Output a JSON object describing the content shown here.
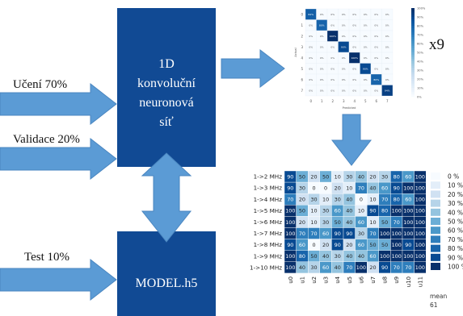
{
  "split": {
    "train_label": "Učení 70%",
    "val_label": "Validace 20%",
    "test_label": "Test 10%"
  },
  "network": {
    "line1": "1D",
    "line2": "konvoluční",
    "line3": "neuronová",
    "line4": "síť"
  },
  "model": {
    "label": "MODEL.h5"
  },
  "confusion": {
    "repeat_label": "x9",
    "classes": [
      "0",
      "1",
      "2",
      "3",
      "4",
      "5",
      "6",
      "7"
    ],
    "diagonal_pct": [
      82,
      80,
      100,
      90,
      100,
      90,
      80,
      94
    ],
    "colorbar_ticks": [
      "100%",
      "90%",
      "80%",
      "70%",
      "60%",
      "50%",
      "40%",
      "30%",
      "20%",
      "10%",
      "0%"
    ],
    "xlabel": "Predicted",
    "ylabel": "Actual"
  },
  "heatmap": {
    "rows": [
      "1->2 MHz",
      "1->3 MHz",
      "1->4 MHz",
      "1->5 MHz",
      "1->6 MHz",
      "1->7 MHz",
      "1->8 MHz",
      "1->9 MHz",
      "1->10 MHz"
    ],
    "cols": [
      "u0",
      "u1",
      "u2",
      "u3",
      "u4",
      "u5",
      "u6",
      "u7",
      "u8",
      "u9",
      "u10",
      "u11"
    ],
    "values": [
      [
        90,
        50,
        20,
        50,
        10,
        30,
        40,
        20,
        30,
        80,
        60,
        100
      ],
      [
        90,
        30,
        0,
        0,
        20,
        10,
        70,
        40,
        60,
        90,
        100,
        100
      ],
      [
        70,
        20,
        30,
        10,
        30,
        40,
        0,
        10,
        70,
        80,
        60,
        100
      ],
      [
        100,
        50,
        10,
        30,
        60,
        40,
        10,
        90,
        80,
        100,
        100,
        100
      ],
      [
        100,
        20,
        10,
        30,
        50,
        40,
        60,
        10,
        50,
        70,
        100,
        100
      ],
      [
        100,
        70,
        70,
        60,
        90,
        90,
        30,
        70,
        100,
        100,
        100,
        100
      ],
      [
        90,
        60,
        0,
        20,
        90,
        20,
        60,
        50,
        50,
        100,
        90,
        100
      ],
      [
        100,
        80,
        50,
        40,
        30,
        40,
        40,
        60,
        100,
        100,
        100,
        100
      ],
      [
        100,
        40,
        30,
        60,
        40,
        70,
        100,
        20,
        90,
        70,
        70,
        100
      ]
    ],
    "legend_labels": [
      "0 %",
      "10 %",
      "20 %",
      "30 %",
      "40 %",
      "50 %",
      "60 %",
      "70 %",
      "80 %",
      "90 %",
      "100 %"
    ],
    "mean_label": "mean",
    "mean_value": "61"
  },
  "colors": {
    "dark_box": "#114a94",
    "arrow": "#5b9bd5",
    "arrow_edge": "#4a86c0"
  }
}
